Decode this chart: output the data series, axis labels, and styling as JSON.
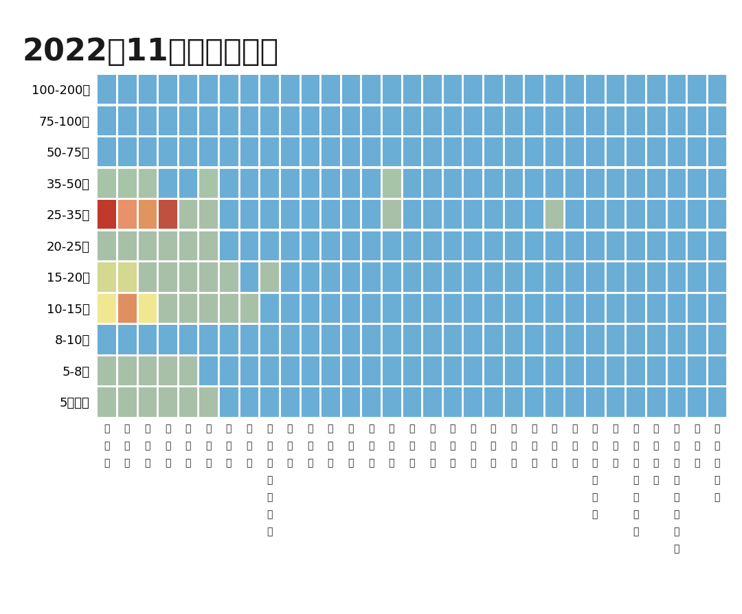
{
  "title": "2022年11月纯电动分布",
  "title_fontsize": 32,
  "background_color": "#ffffff",
  "price_segments": [
    "100-200万",
    "75-100万",
    "50-75万",
    "35-50万",
    "25-35万",
    "20-25万",
    "15-20万",
    "10-15万",
    "8-10万",
    "5-8万",
    "5万以下"
  ],
  "provinces": [
    "浙江省",
    "广东省",
    "江苏省",
    "上海市",
    "山东省",
    "四川省",
    "河南省",
    "安徽省",
    "广西壮族自治区",
    "北京市",
    "福建省",
    "湖北省",
    "湖南省",
    "天津市",
    "云南省",
    "陕西省",
    "河北省",
    "江西省",
    "贵州省",
    "山西省",
    "海南省",
    "辽宁省",
    "吉林省",
    "重庆市",
    "内蒙古自治区",
    "甘肃省",
    "宁夏回族自治区",
    "黑龙江省",
    "新疆维吾尔自治区",
    "青海省",
    "西藏自治区"
  ],
  "cell_colors": [
    [
      "#6aaed6",
      "#6aaed6",
      "#6aaed6",
      "#6aaed6",
      "#6aaed6",
      "#6aaed6",
      "#6aaed6",
      "#6aaed6",
      "#6aaed6",
      "#6aaed6",
      "#6aaed6",
      "#6aaed6",
      "#6aaed6",
      "#6aaed6",
      "#6aaed6",
      "#6aaed6",
      "#6aaed6",
      "#6aaed6",
      "#6aaed6",
      "#6aaed6",
      "#6aaed6",
      "#6aaed6",
      "#6aaed6",
      "#6aaed6",
      "#6aaed6",
      "#6aaed6",
      "#6aaed6",
      "#6aaed6",
      "#6aaed6",
      "#6aaed6",
      "#6aaed6"
    ],
    [
      "#6aaed6",
      "#6aaed6",
      "#6aaed6",
      "#6aaed6",
      "#6aaed6",
      "#6aaed6",
      "#6aaed6",
      "#6aaed6",
      "#6aaed6",
      "#6aaed6",
      "#6aaed6",
      "#6aaed6",
      "#6aaed6",
      "#6aaed6",
      "#6aaed6",
      "#6aaed6",
      "#6aaed6",
      "#6aaed6",
      "#6aaed6",
      "#6aaed6",
      "#6aaed6",
      "#6aaed6",
      "#6aaed6",
      "#6aaed6",
      "#6aaed6",
      "#6aaed6",
      "#6aaed6",
      "#6aaed6",
      "#6aaed6",
      "#6aaed6",
      "#6aaed6"
    ],
    [
      "#6aaed6",
      "#6aaed6",
      "#6aaed6",
      "#6aaed6",
      "#6aaed6",
      "#6aaed6",
      "#6aaed6",
      "#6aaed6",
      "#6aaed6",
      "#6aaed6",
      "#6aaed6",
      "#6aaed6",
      "#6aaed6",
      "#6aaed6",
      "#6aaed6",
      "#6aaed6",
      "#6aaed6",
      "#6aaed6",
      "#6aaed6",
      "#6aaed6",
      "#6aaed6",
      "#6aaed6",
      "#6aaed6",
      "#6aaed6",
      "#6aaed6",
      "#6aaed6",
      "#6aaed6",
      "#6aaed6",
      "#6aaed6",
      "#6aaed6",
      "#6aaed6"
    ],
    [
      "#a8c4a8",
      "#a8c4a8",
      "#a8c4a8",
      "#6aaed6",
      "#6aaed6",
      "#a8c4a8",
      "#6aaed6",
      "#6aaed6",
      "#6aaed6",
      "#6aaed6",
      "#6aaed6",
      "#6aaed6",
      "#6aaed6",
      "#6aaed6",
      "#a8c4a8",
      "#6aaed6",
      "#6aaed6",
      "#6aaed6",
      "#6aaed6",
      "#6aaed6",
      "#6aaed6",
      "#6aaed6",
      "#6aaed6",
      "#6aaed6",
      "#6aaed6",
      "#6aaed6",
      "#6aaed6",
      "#6aaed6",
      "#6aaed6",
      "#6aaed6",
      "#6aaed6"
    ],
    [
      "#c0392b",
      "#e8916a",
      "#e0945e",
      "#c05040",
      "#a8c0a8",
      "#a8c0a8",
      "#6aaed6",
      "#6aaed6",
      "#6aaed6",
      "#6aaed6",
      "#6aaed6",
      "#6aaed6",
      "#6aaed6",
      "#6aaed6",
      "#a8c0a8",
      "#6aaed6",
      "#6aaed6",
      "#6aaed6",
      "#6aaed6",
      "#6aaed6",
      "#6aaed6",
      "#6aaed6",
      "#a8c0a8",
      "#6aaed6",
      "#6aaed6",
      "#6aaed6",
      "#6aaed6",
      "#6aaed6",
      "#6aaed6",
      "#6aaed6",
      "#6aaed6"
    ],
    [
      "#a8c0a8",
      "#a8c0a8",
      "#a8c0a8",
      "#a8c0a8",
      "#a8c0a8",
      "#a8c0a8",
      "#6aaed6",
      "#6aaed6",
      "#6aaed6",
      "#6aaed6",
      "#6aaed6",
      "#6aaed6",
      "#6aaed6",
      "#6aaed6",
      "#6aaed6",
      "#6aaed6",
      "#6aaed6",
      "#6aaed6",
      "#6aaed6",
      "#6aaed6",
      "#6aaed6",
      "#6aaed6",
      "#6aaed6",
      "#6aaed6",
      "#6aaed6",
      "#6aaed6",
      "#6aaed6",
      "#6aaed6",
      "#6aaed6",
      "#6aaed6",
      "#6aaed6"
    ],
    [
      "#d4d890",
      "#d4d890",
      "#a8c0a8",
      "#a8c0a8",
      "#a8c0a8",
      "#a8c0a8",
      "#a8c0a8",
      "#6aaed6",
      "#a8c0a8",
      "#6aaed6",
      "#6aaed6",
      "#6aaed6",
      "#6aaed6",
      "#6aaed6",
      "#6aaed6",
      "#6aaed6",
      "#6aaed6",
      "#6aaed6",
      "#6aaed6",
      "#6aaed6",
      "#6aaed6",
      "#6aaed6",
      "#6aaed6",
      "#6aaed6",
      "#6aaed6",
      "#6aaed6",
      "#6aaed6",
      "#6aaed6",
      "#6aaed6",
      "#6aaed6",
      "#6aaed6"
    ],
    [
      "#f0e890",
      "#e09060",
      "#f0e890",
      "#a8c0a8",
      "#a8c0a8",
      "#a8c0a8",
      "#a8c0a8",
      "#a8c0a8",
      "#6aaed6",
      "#6aaed6",
      "#6aaed6",
      "#6aaed6",
      "#6aaed6",
      "#6aaed6",
      "#6aaed6",
      "#6aaed6",
      "#6aaed6",
      "#6aaed6",
      "#6aaed6",
      "#6aaed6",
      "#6aaed6",
      "#6aaed6",
      "#6aaed6",
      "#6aaed6",
      "#6aaed6",
      "#6aaed6",
      "#6aaed6",
      "#6aaed6",
      "#6aaed6",
      "#6aaed6",
      "#6aaed6"
    ],
    [
      "#6aaed6",
      "#6aaed6",
      "#6aaed6",
      "#6aaed6",
      "#6aaed6",
      "#6aaed6",
      "#6aaed6",
      "#6aaed6",
      "#6aaed6",
      "#6aaed6",
      "#6aaed6",
      "#6aaed6",
      "#6aaed6",
      "#6aaed6",
      "#6aaed6",
      "#6aaed6",
      "#6aaed6",
      "#6aaed6",
      "#6aaed6",
      "#6aaed6",
      "#6aaed6",
      "#6aaed6",
      "#6aaed6",
      "#6aaed6",
      "#6aaed6",
      "#6aaed6",
      "#6aaed6",
      "#6aaed6",
      "#6aaed6",
      "#6aaed6",
      "#6aaed6"
    ],
    [
      "#a8c0a8",
      "#a8c0a8",
      "#a8c0a8",
      "#a8c0a8",
      "#a8c0a8",
      "#6aaed6",
      "#6aaed6",
      "#6aaed6",
      "#6aaed6",
      "#6aaed6",
      "#6aaed6",
      "#6aaed6",
      "#6aaed6",
      "#6aaed6",
      "#6aaed6",
      "#6aaed6",
      "#6aaed6",
      "#6aaed6",
      "#6aaed6",
      "#6aaed6",
      "#6aaed6",
      "#6aaed6",
      "#6aaed6",
      "#6aaed6",
      "#6aaed6",
      "#6aaed6",
      "#6aaed6",
      "#6aaed6",
      "#6aaed6",
      "#6aaed6",
      "#6aaed6"
    ],
    [
      "#a8c0a8",
      "#a8c0a8",
      "#a8c0a8",
      "#a8c0a8",
      "#a8c0a8",
      "#a8c0a8",
      "#6aaed6",
      "#6aaed6",
      "#6aaed6",
      "#6aaed6",
      "#6aaed6",
      "#6aaed6",
      "#6aaed6",
      "#6aaed6",
      "#6aaed6",
      "#6aaed6",
      "#6aaed6",
      "#6aaed6",
      "#6aaed6",
      "#6aaed6",
      "#6aaed6",
      "#6aaed6",
      "#6aaed6",
      "#6aaed6",
      "#6aaed6",
      "#6aaed6",
      "#6aaed6",
      "#6aaed6",
      "#6aaed6",
      "#6aaed6",
      "#6aaed6"
    ]
  ],
  "grid_color": "#ffffff",
  "grid_linewidth": 2.0,
  "ylabel_fontsize": 13,
  "xlabel_fontsize": 10
}
